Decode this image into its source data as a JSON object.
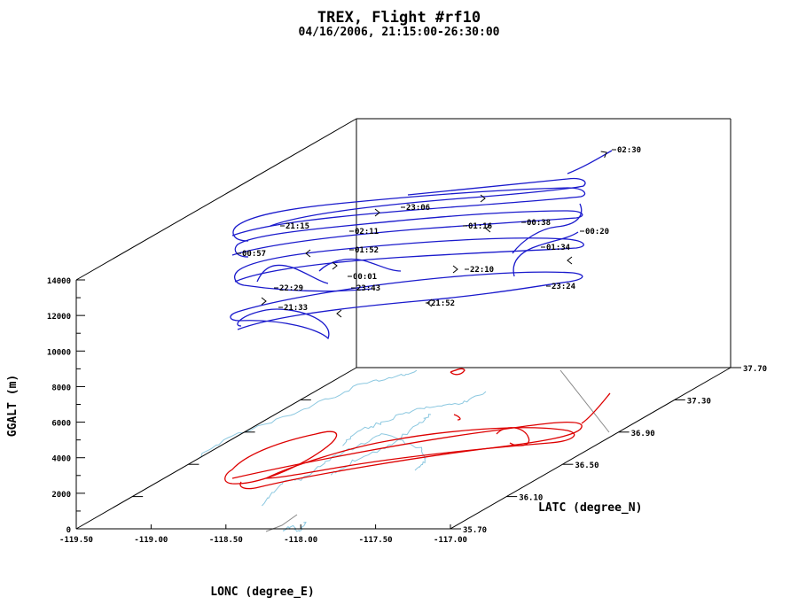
{
  "chart_data": {
    "type": "line",
    "projection": "3d",
    "title": "TREX, Flight #rf10",
    "subtitle": "04/16/2006, 21:15:00-26:30:00",
    "xlabel": "LONC (degree_E)",
    "ylabel": "LATC (degree_N)",
    "zlabel": "GGALT (m)",
    "xlim": [
      -119.5,
      -117.0
    ],
    "ylim": [
      35.7,
      37.7
    ],
    "zlim": [
      0,
      14000
    ],
    "x_ticks": [
      "-119.50",
      "-119.00",
      "-118.50",
      "-118.00",
      "-117.50",
      "-117.00"
    ],
    "y_ticks": [
      "35.70",
      "36.10",
      "36.50",
      "36.90",
      "37.30",
      "37.70"
    ],
    "z_ticks": [
      "0",
      "2000",
      "4000",
      "6000",
      "8000",
      "10000",
      "12000",
      "14000"
    ],
    "colors": {
      "track": "#1a1acc",
      "ground_track": "#dd0000",
      "map_lines": "#8cc8e0",
      "frame": "#000000"
    },
    "time_labels": [
      "21:15",
      "02:11",
      "23:06",
      "01:16",
      "00:38",
      "02:30",
      "00:20",
      "01:34",
      "00:57",
      "01:52",
      "22:10",
      "00:01",
      "23:24",
      "22:29",
      "23:43",
      "21:33",
      "21:52"
    ]
  }
}
